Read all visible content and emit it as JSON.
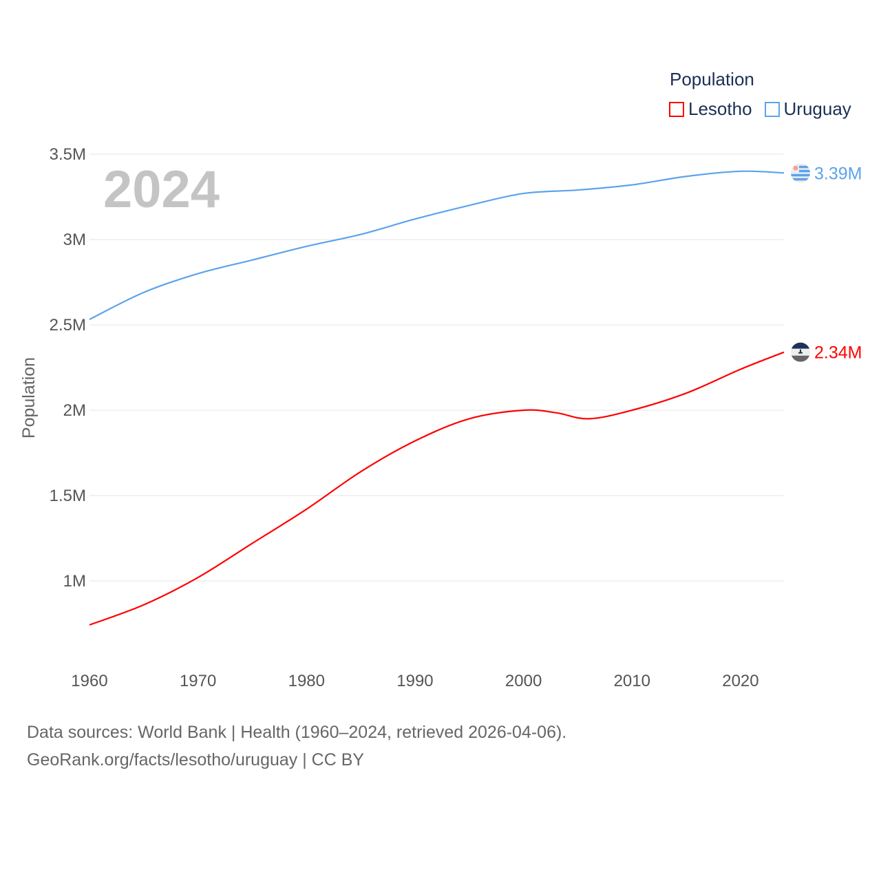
{
  "chart_data": {
    "type": "line",
    "title": "",
    "watermark_year": "2024",
    "xlabel": "",
    "ylabel": "Population",
    "xlim": [
      1960,
      2024
    ],
    "ylim": [
      480000,
      3600000
    ],
    "x_ticks": [
      1960,
      1970,
      1980,
      1990,
      2000,
      2010,
      2020
    ],
    "x_tick_labels": [
      "1960",
      "1970",
      "1980",
      "1990",
      "2000",
      "2010",
      "2020"
    ],
    "y_ticks": [
      1000000,
      1500000,
      2000000,
      2500000,
      3000000,
      3500000
    ],
    "y_tick_labels": [
      "1M",
      "1.5M",
      "2M",
      "2.5M",
      "3M",
      "3.5M"
    ],
    "grid": true,
    "legend": {
      "title": "Population",
      "placement": "top-right"
    },
    "series": [
      {
        "name": "Lesotho",
        "color": "#ff0000",
        "end_label": "2.34M",
        "flag": "lesotho-flag",
        "x": [
          1960,
          1965,
          1970,
          1975,
          1980,
          1985,
          1990,
          1995,
          2000,
          2003,
          2006,
          2010,
          2015,
          2020,
          2024
        ],
        "values": [
          742000,
          860000,
          1020000,
          1220000,
          1420000,
          1640000,
          1820000,
          1950000,
          2000000,
          1985000,
          1950000,
          2000000,
          2100000,
          2240000,
          2340000
        ]
      },
      {
        "name": "Uruguay",
        "color": "#5ba3ec",
        "end_label": "3.39M",
        "flag": "uruguay-flag",
        "x": [
          1960,
          1965,
          1970,
          1975,
          1980,
          1985,
          1990,
          1995,
          2000,
          2005,
          2010,
          2015,
          2020,
          2024
        ],
        "values": [
          2532000,
          2690000,
          2800000,
          2880000,
          2960000,
          3030000,
          3120000,
          3200000,
          3270000,
          3290000,
          3320000,
          3370000,
          3400000,
          3390000
        ]
      }
    ]
  },
  "footer": {
    "line1": "Data sources: World Bank | Health (1960–2024, retrieved 2026-04-06).",
    "line2": "GeoRank.org/facts/lesotho/uruguay | CC BY"
  }
}
